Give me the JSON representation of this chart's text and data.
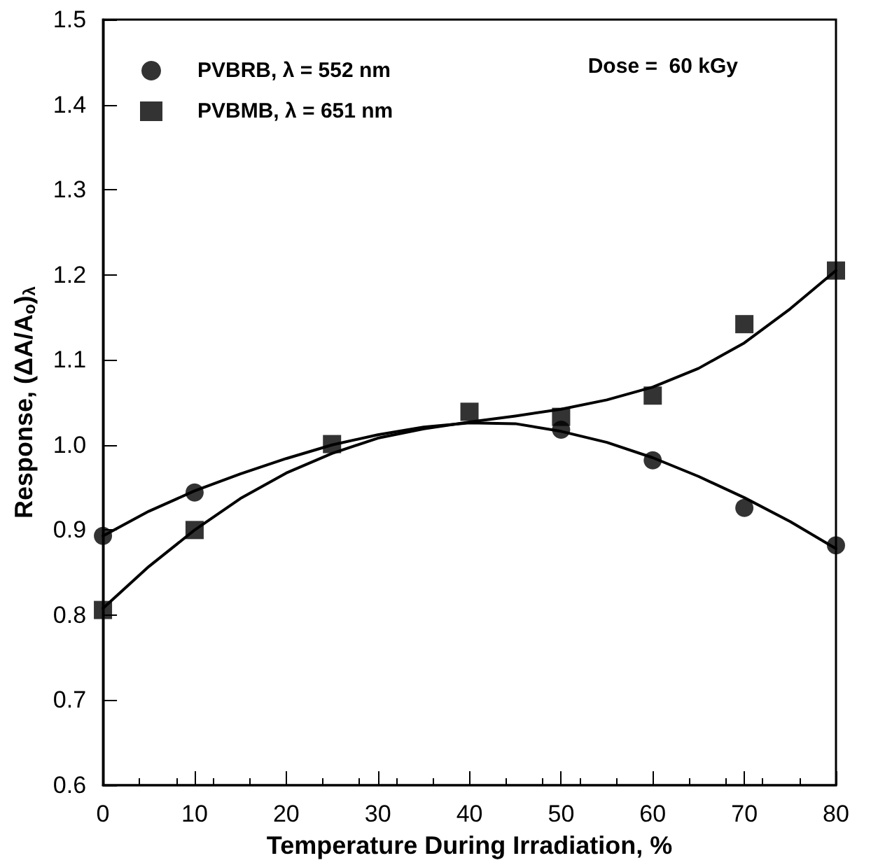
{
  "chart_data": {
    "type": "scatter",
    "xlabel": "Temperature During Irradiation, %",
    "ylabel": "Response, (ΔA/A$_{o}$)$_{λ}$",
    "xlim": [
      0,
      80
    ],
    "xticks": [
      0,
      10,
      20,
      30,
      40,
      50,
      60,
      70,
      80
    ],
    "ylim": [
      0.6,
      1.5
    ],
    "yticks": [
      0.6,
      0.7,
      0.8,
      0.9,
      {
        "value": 1,
        "label": "1.0"
      },
      1.1,
      1.2,
      1.3,
      1.4,
      1.5
    ],
    "grid": false,
    "legend": "top left",
    "annotations": [
      "Dose =  60 kGy"
    ],
    "series": [
      {
        "name": "PVBRB, λ = 552 nm",
        "color": "#000000",
        "marker": "circle",
        "x": [
          0,
          10,
          25,
          50,
          60,
          70,
          80
        ],
        "values": [
          0.893,
          0.944,
          null,
          1.018,
          0.982,
          0.926,
          0.882
        ]
      },
      {
        "name": "PVBMB, λ = 651 nm",
        "color": "#000000",
        "marker": "square",
        "x": [
          0,
          10,
          25,
          40,
          50,
          60,
          70,
          80
        ],
        "values": [
          0.806,
          0.9,
          1.001,
          1.039,
          1.033,
          1.058,
          1.142,
          1.205
        ]
      },
      {
        "type": "line",
        "color": "#000000",
        "marker": "none",
        "x": [
          0,
          5,
          10,
          15,
          20,
          25,
          30,
          35,
          40,
          45,
          50,
          55,
          60,
          65,
          70,
          75,
          80
        ],
        "values": [
          0.893,
          0.922,
          0.946,
          0.966,
          0.984,
          1.0,
          1.012,
          1.021,
          1.026,
          1.025,
          1.016,
          1.003,
          0.985,
          0.963,
          0.938,
          0.91,
          0.878
        ]
      },
      {
        "type": "line",
        "color": "#000000",
        "marker": "none",
        "x": [
          0,
          5,
          10,
          15,
          20,
          25,
          30,
          35,
          40,
          45,
          50,
          55,
          60,
          65,
          70,
          75,
          80
        ],
        "values": [
          0.808,
          0.857,
          0.9,
          0.937,
          0.967,
          0.99,
          1.008,
          1.019,
          1.027,
          1.034,
          1.042,
          1.053,
          1.068,
          1.09,
          1.12,
          1.16,
          1.205
        ]
      }
    ]
  }
}
